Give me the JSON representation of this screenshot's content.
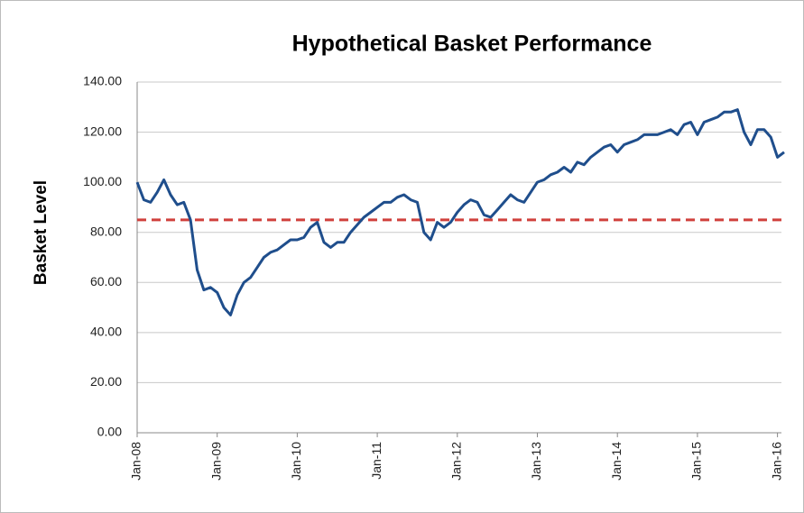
{
  "chart_data": {
    "type": "line",
    "title": "Hypothetical  Basket  Performance",
    "y_label": "Basket Level",
    "x": [
      "2008-01",
      "2008-02",
      "2008-03",
      "2008-04",
      "2008-05",
      "2008-06",
      "2008-07",
      "2008-08",
      "2008-09",
      "2008-10",
      "2008-11",
      "2008-12",
      "2009-01",
      "2009-02",
      "2009-03",
      "2009-04",
      "2009-05",
      "2009-06",
      "2009-07",
      "2009-08",
      "2009-09",
      "2009-10",
      "2009-11",
      "2009-12",
      "2010-01",
      "2010-02",
      "2010-03",
      "2010-04",
      "2010-05",
      "2010-06",
      "2010-07",
      "2010-08",
      "2010-09",
      "2010-10",
      "2010-11",
      "2010-12",
      "2011-01",
      "2011-02",
      "2011-03",
      "2011-04",
      "2011-05",
      "2011-06",
      "2011-07",
      "2011-08",
      "2011-09",
      "2011-10",
      "2011-11",
      "2011-12",
      "2012-01",
      "2012-02",
      "2012-03",
      "2012-04",
      "2012-05",
      "2012-06",
      "2012-07",
      "2012-08",
      "2012-09",
      "2012-10",
      "2012-11",
      "2012-12",
      "2013-01",
      "2013-02",
      "2013-03",
      "2013-04",
      "2013-05",
      "2013-06",
      "2013-07",
      "2013-08",
      "2013-09",
      "2013-10",
      "2013-11",
      "2013-12",
      "2014-01",
      "2014-02",
      "2014-03",
      "2014-04",
      "2014-05",
      "2014-06",
      "2014-07",
      "2014-08",
      "2014-09",
      "2014-10",
      "2014-11",
      "2014-12",
      "2015-01",
      "2015-02",
      "2015-03",
      "2015-04",
      "2015-05",
      "2015-06",
      "2015-07",
      "2015-08",
      "2015-09",
      "2015-10",
      "2015-11",
      "2015-12",
      "2016-01",
      "2016-02"
    ],
    "series": [
      {
        "name": "Basket",
        "color": "#1f4e8c",
        "values": [
          100,
          93,
          92,
          96,
          101,
          95,
          91,
          92,
          85,
          65,
          57,
          58,
          56,
          50,
          47,
          55,
          60,
          62,
          66,
          70,
          72,
          73,
          75,
          77,
          77,
          78,
          82,
          84,
          76,
          74,
          76,
          76,
          80,
          83,
          86,
          88,
          90,
          92,
          92,
          94,
          95,
          93,
          92,
          80,
          77,
          84,
          82,
          84,
          88,
          91,
          93,
          92,
          87,
          86,
          89,
          92,
          95,
          93,
          92,
          96,
          100,
          101,
          103,
          104,
          106,
          104,
          108,
          107,
          110,
          112,
          114,
          115,
          112,
          115,
          116,
          117,
          119,
          119,
          119,
          120,
          121,
          119,
          123,
          124,
          119,
          124,
          125,
          126,
          128,
          128,
          129,
          120,
          115,
          121,
          121,
          118,
          110,
          112
        ]
      }
    ],
    "reference_line": {
      "value": 85,
      "color": "#d0403c",
      "style": "dashed"
    },
    "xlim": [
      "2008-01",
      "2016-02"
    ],
    "xticks": [
      {
        "value": "2008-01",
        "label": "Jan-08"
      },
      {
        "value": "2009-01",
        "label": "Jan-09"
      },
      {
        "value": "2010-01",
        "label": "Jan-10"
      },
      {
        "value": "2011-01",
        "label": "Jan-11"
      },
      {
        "value": "2012-01",
        "label": "Jan-12"
      },
      {
        "value": "2013-01",
        "label": "Jan-13"
      },
      {
        "value": "2014-01",
        "label": "Jan-14"
      },
      {
        "value": "2015-01",
        "label": "Jan-15"
      },
      {
        "value": "2016-01",
        "label": "Jan-16"
      }
    ],
    "ylim": [
      0,
      140
    ],
    "yticks": [
      {
        "value": 0,
        "label": "0.00"
      },
      {
        "value": 20,
        "label": "20.00"
      },
      {
        "value": 40,
        "label": "40.00"
      },
      {
        "value": 60,
        "label": "60.00"
      },
      {
        "value": 80,
        "label": "80.00"
      },
      {
        "value": 100,
        "label": "100.00"
      },
      {
        "value": 120,
        "label": "120.00"
      },
      {
        "value": 140,
        "label": "140.00"
      }
    ],
    "grid": true
  }
}
